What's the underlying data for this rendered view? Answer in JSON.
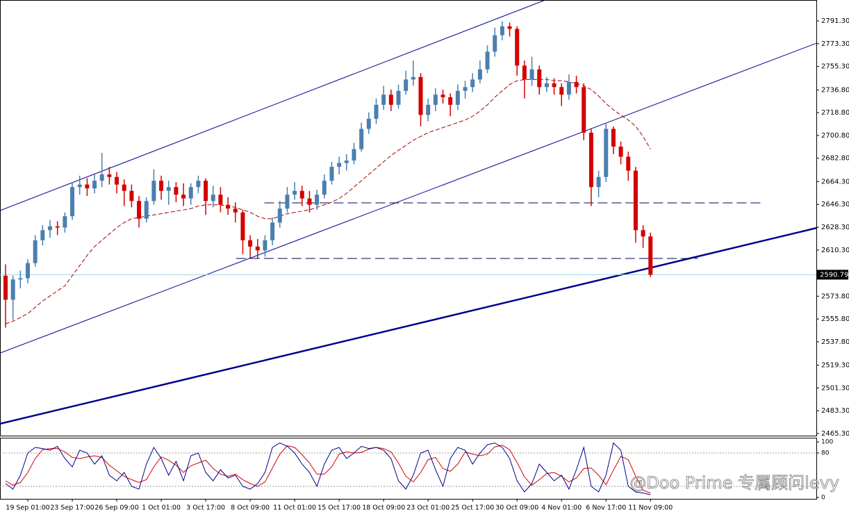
{
  "chart_data": {
    "type": "candlestick",
    "categories": [
      null,
      null,
      null,
      "19 Sep 01:00",
      null,
      null,
      null,
      null,
      null,
      "23 Sep 17:00",
      null,
      null,
      null,
      null,
      null,
      "26 Sep 09:00",
      null,
      null,
      null,
      null,
      null,
      "1 Oct 01:00",
      null,
      null,
      null,
      null,
      null,
      "3 Oct 17:00",
      null,
      null,
      null,
      null,
      null,
      "8 Oct 09:00",
      null,
      null,
      null,
      null,
      null,
      "11 Oct 01:00",
      null,
      null,
      null,
      null,
      null,
      "15 Oct 17:00",
      null,
      null,
      null,
      null,
      null,
      "18 Oct 09:00",
      null,
      null,
      null,
      null,
      null,
      "23 Oct 01:00",
      null,
      null,
      null,
      null,
      null,
      "25 Oct 17:00",
      null,
      null,
      null,
      null,
      null,
      "30 Oct 09:00",
      null,
      null,
      null,
      null,
      null,
      "4 Nov 01:00",
      null,
      null,
      null,
      null,
      null,
      "6 Nov 17:00",
      null,
      null,
      null,
      null,
      null,
      "11 Nov 09:00"
    ],
    "ohlc": [
      [
        2590,
        2599,
        2549,
        2571
      ],
      [
        2571,
        2590,
        2555,
        2587
      ],
      [
        2587,
        2594,
        2580,
        2588
      ],
      [
        2588,
        2603,
        2584,
        2600
      ],
      [
        2600,
        2622,
        2597,
        2618
      ],
      [
        2618,
        2630,
        2614,
        2626
      ],
      [
        2626,
        2634,
        2620,
        2629
      ],
      [
        2629,
        2633,
        2622,
        2628
      ],
      [
        2628,
        2640,
        2624,
        2637
      ],
      [
        2637,
        2664,
        2634,
        2660
      ],
      [
        2660,
        2669,
        2654,
        2662
      ],
      [
        2662,
        2667,
        2653,
        2659
      ],
      [
        2659,
        2671,
        2655,
        2665
      ],
      [
        2665,
        2687,
        2660,
        2670
      ],
      [
        2670,
        2676,
        2662,
        2668
      ],
      [
        2668,
        2672,
        2655,
        2662
      ],
      [
        2662,
        2666,
        2645,
        2657
      ],
      [
        2657,
        2662,
        2644,
        2649
      ],
      [
        2649,
        2653,
        2628,
        2635
      ],
      [
        2635,
        2652,
        2632,
        2649
      ],
      [
        2649,
        2674,
        2646,
        2665
      ],
      [
        2665,
        2669,
        2650,
        2657
      ],
      [
        2657,
        2665,
        2646,
        2660
      ],
      [
        2660,
        2664,
        2648,
        2654
      ],
      [
        2654,
        2663,
        2645,
        2651
      ],
      [
        2651,
        2663,
        2646,
        2660
      ],
      [
        2660,
        2669,
        2655,
        2665
      ],
      [
        2665,
        2667,
        2638,
        2649
      ],
      [
        2649,
        2661,
        2644,
        2654
      ],
      [
        2654,
        2660,
        2640,
        2646
      ],
      [
        2646,
        2652,
        2638,
        2643
      ],
      [
        2643,
        2648,
        2632,
        2640
      ],
      [
        2640,
        2642,
        2607,
        2618
      ],
      [
        2618,
        2622,
        2604,
        2613
      ],
      [
        2613,
        2619,
        2604,
        2610
      ],
      [
        2610,
        2622,
        2605,
        2618
      ],
      [
        2618,
        2636,
        2614,
        2632
      ],
      [
        2632,
        2649,
        2628,
        2643
      ],
      [
        2643,
        2660,
        2640,
        2654
      ],
      [
        2654,
        2664,
        2650,
        2657
      ],
      [
        2657,
        2661,
        2645,
        2651
      ],
      [
        2651,
        2657,
        2640,
        2646
      ],
      [
        2646,
        2658,
        2642,
        2654
      ],
      [
        2654,
        2670,
        2651,
        2665
      ],
      [
        2665,
        2680,
        2662,
        2676
      ],
      [
        2676,
        2684,
        2670,
        2679
      ],
      [
        2679,
        2686,
        2673,
        2681
      ],
      [
        2681,
        2695,
        2678,
        2690
      ],
      [
        2690,
        2711,
        2688,
        2706
      ],
      [
        2706,
        2719,
        2702,
        2714
      ],
      [
        2714,
        2730,
        2710,
        2725
      ],
      [
        2725,
        2740,
        2721,
        2733
      ],
      [
        2733,
        2737,
        2720,
        2725
      ],
      [
        2725,
        2741,
        2722,
        2736
      ],
      [
        2736,
        2752,
        2733,
        2745
      ],
      [
        2745,
        2760,
        2740,
        2747
      ],
      [
        2747,
        2750,
        2708,
        2717
      ],
      [
        2717,
        2730,
        2712,
        2725
      ],
      [
        2725,
        2738,
        2720,
        2733
      ],
      [
        2733,
        2737,
        2726,
        2731
      ],
      [
        2731,
        2734,
        2716,
        2725
      ],
      [
        2725,
        2741,
        2721,
        2736
      ],
      [
        2736,
        2744,
        2730,
        2739
      ],
      [
        2739,
        2750,
        2735,
        2745
      ],
      [
        2745,
        2760,
        2742,
        2753
      ],
      [
        2753,
        2772,
        2750,
        2767
      ],
      [
        2767,
        2786,
        2763,
        2780
      ],
      [
        2780,
        2791,
        2776,
        2787
      ],
      [
        2787,
        2790,
        2779,
        2785
      ],
      [
        2785,
        2787,
        2748,
        2756
      ],
      [
        2756,
        2760,
        2730,
        2745
      ],
      [
        2745,
        2763,
        2740,
        2753
      ],
      [
        2753,
        2756,
        2733,
        2739
      ],
      [
        2739,
        2747,
        2735,
        2742
      ],
      [
        2742,
        2746,
        2733,
        2739
      ],
      [
        2739,
        2742,
        2724,
        2733
      ],
      [
        2733,
        2749,
        2729,
        2743
      ],
      [
        2743,
        2748,
        2734,
        2739
      ],
      [
        2739,
        2742,
        2697,
        2703
      ],
      [
        2703,
        2706,
        2645,
        2660
      ],
      [
        2660,
        2673,
        2652,
        2668
      ],
      [
        2668,
        2710,
        2664,
        2706
      ],
      [
        2706,
        2708,
        2686,
        2692
      ],
      [
        2692,
        2696,
        2678,
        2684
      ],
      [
        2684,
        2688,
        2665,
        2673
      ],
      [
        2673,
        2676,
        2616,
        2626
      ],
      [
        2626,
        2630,
        2612,
        2621
      ],
      [
        2621,
        2624,
        2589,
        2590.79
      ]
    ],
    "up_color": "#4a7fb0",
    "down_color": "#d40000",
    "ma": {
      "color": "#a00000",
      "values": [
        2552,
        2554,
        2557,
        2560,
        2565,
        2570,
        2574,
        2578,
        2582,
        2590,
        2598,
        2606,
        2613,
        2618,
        2623,
        2628,
        2632,
        2635,
        2636,
        2637,
        2638,
        2639,
        2640,
        2641,
        2642,
        2643,
        2645,
        2646,
        2646,
        2646,
        2645,
        2644,
        2642,
        2640,
        2637,
        2635,
        2635,
        2637,
        2639,
        2640,
        2641,
        2642,
        2644,
        2646,
        2648,
        2651,
        2655,
        2660,
        2665,
        2670,
        2675,
        2680,
        2685,
        2689,
        2693,
        2697,
        2700,
        2703,
        2705,
        2707,
        2709,
        2711,
        2713,
        2716,
        2720,
        2725,
        2731,
        2736,
        2741,
        2744,
        2745,
        2745,
        2745,
        2745,
        2744,
        2744,
        2743,
        2742,
        2740,
        2737,
        2732,
        2726,
        2721,
        2717,
        2713,
        2708,
        2700,
        2690
      ]
    },
    "ylim": [
      2463.1,
      2807.8
    ],
    "yticks": [
      {
        "value": 2465.3,
        "label": "2465.30"
      },
      {
        "value": 2483.3,
        "label": "2483.30"
      },
      {
        "value": 2501.3,
        "label": "2501.30"
      },
      {
        "value": 2519.3,
        "label": "2519.30"
      },
      {
        "value": 2537.8,
        "label": "2537.80"
      },
      {
        "value": 2555.8,
        "label": "2555.80"
      },
      {
        "value": 2573.8,
        "label": "2573.80"
      },
      {
        "value": 2610.3,
        "label": "2610.30"
      },
      {
        "value": 2628.3,
        "label": "2628.30"
      },
      {
        "value": 2646.3,
        "label": "2646.30"
      },
      {
        "value": 2664.3,
        "label": "2664.30"
      },
      {
        "value": 2682.8,
        "label": "2682.80"
      },
      {
        "value": 2700.8,
        "label": "2700.80"
      },
      {
        "value": 2718.8,
        "label": "2718.80"
      },
      {
        "value": 2736.8,
        "label": "2736.80"
      },
      {
        "value": 2755.3,
        "label": "2755.30"
      },
      {
        "value": 2773.3,
        "label": "2773.30"
      },
      {
        "value": 2791.3,
        "label": "2791.30"
      }
    ],
    "trendlines": [
      {
        "x": [
          -0.75,
          72.8
        ],
        "y": [
          2641.5,
          2807.8
        ],
        "width": 1,
        "color": "#00008b",
        "dash": false
      },
      {
        "x": [
          -0.75,
          109.4
        ],
        "y": [
          2528.9,
          2773.7
        ],
        "width": 1,
        "color": "#00008b",
        "dash": false
      },
      {
        "x": [
          -0.75,
          109.4
        ],
        "y": [
          2473,
          2627.7
        ],
        "width": 2.5,
        "color": "#00008b",
        "dash": false
      },
      {
        "x": [
          34.9,
          101.9
        ],
        "y": [
          2647.5,
          2647.5
        ],
        "width": 1,
        "color": "#00005a",
        "dash": true
      },
      {
        "x": [
          31.1,
          93.4
        ],
        "y": [
          2603.6,
          2603.6
        ],
        "width": 1,
        "color": "#00005a",
        "dash": true
      }
    ],
    "price_line_color": "#9ad7e0",
    "oscillator": {
      "ylim": [
        -2.5,
        107.5
      ],
      "yticks": [
        0,
        80,
        100
      ],
      "levels": [
        20,
        80
      ],
      "main": {
        "color": "#00008b",
        "values": [
          25,
          15,
          40,
          80,
          90,
          88,
          85,
          92,
          70,
          55,
          85,
          80,
          60,
          75,
          40,
          30,
          45,
          20,
          15,
          60,
          90,
          70,
          40,
          65,
          30,
          75,
          80,
          45,
          30,
          50,
          35,
          40,
          20,
          15,
          25,
          45,
          90,
          98,
          92,
          80,
          60,
          45,
          20,
          60,
          85,
          90,
          70,
          80,
          92,
          88,
          90,
          85,
          70,
          30,
          15,
          40,
          80,
          85,
          50,
          20,
          70,
          90,
          85,
          60,
          80,
          95,
          98,
          90,
          70,
          30,
          10,
          25,
          60,
          45,
          30,
          40,
          15,
          50,
          90,
          20,
          10,
          40,
          98,
          85,
          20,
          10,
          8,
          5
        ]
      },
      "signal": {
        "color": "#d40000",
        "values": [
          30,
          22,
          27,
          45,
          70,
          86,
          88,
          88,
          82,
          72,
          70,
          73,
          75,
          72,
          58,
          48,
          38,
          32,
          27,
          32,
          55,
          73,
          67,
          58,
          45,
          57,
          62,
          67,
          52,
          42,
          38,
          42,
          32,
          25,
          20,
          28,
          53,
          78,
          93,
          90,
          77,
          62,
          42,
          42,
          55,
          78,
          82,
          80,
          81,
          87,
          90,
          88,
          82,
          62,
          38,
          28,
          45,
          68,
          72,
          52,
          47,
          60,
          82,
          78,
          75,
          78,
          91,
          94,
          86,
          63,
          37,
          22,
          32,
          43,
          45,
          38,
          28,
          35,
          52,
          53,
          40,
          23,
          49,
          74,
          68,
          38,
          13,
          8
        ]
      }
    },
    "watermark": "@Doo Prime 专属顾问levy"
  }
}
